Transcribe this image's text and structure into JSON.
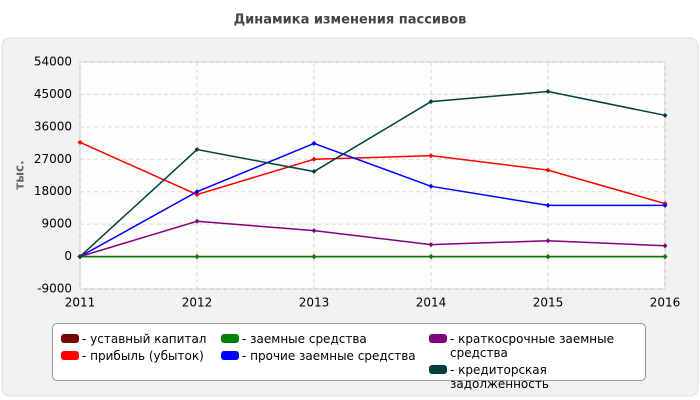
{
  "chart_data": {
    "type": "line",
    "title": "Динамика изменения пассивов",
    "y_label": "тыс.",
    "x": [
      2011,
      2012,
      2013,
      2014,
      2015,
      2016
    ],
    "xlim": [
      2011,
      2016
    ],
    "xticks": [
      2011,
      2012,
      2013,
      2014,
      2015,
      2016
    ],
    "ylim": [
      -9000,
      54000
    ],
    "yticks": [
      -9000,
      0,
      9000,
      18000,
      27000,
      36000,
      45000,
      54000
    ],
    "grid": true,
    "series": [
      {
        "name": "уставный капитал",
        "color": "#7a0000",
        "values": [
          0,
          0,
          0,
          0,
          0,
          0
        ]
      },
      {
        "name": "прибыль (убыток)",
        "color": "#ff0000",
        "values": [
          31700,
          17200,
          27000,
          28000,
          24000,
          14700
        ]
      },
      {
        "name": "заемные средства",
        "color": "#008000",
        "values": [
          0,
          0,
          0,
          0,
          0,
          0
        ]
      },
      {
        "name": "прочие заемные средства",
        "color": "#0000ff",
        "values": [
          0,
          18000,
          31400,
          19500,
          14200,
          14200
        ]
      },
      {
        "name": "краткосрочные заемные средства",
        "color": "#800080",
        "values": [
          0,
          9800,
          7200,
          3300,
          4400,
          3000
        ]
      },
      {
        "name": "кредиторская задолженность",
        "color": "#004040",
        "values": [
          0,
          29700,
          23600,
          43000,
          45800,
          39200
        ]
      }
    ]
  }
}
